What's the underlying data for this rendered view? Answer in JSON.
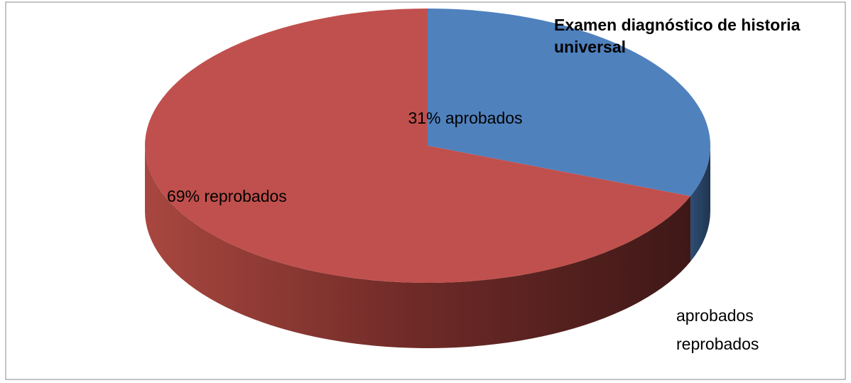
{
  "chart_data": {
    "type": "pie",
    "title": "Examen diagnóstico de historia universal",
    "categories": [
      "aprobados",
      "reprobados"
    ],
    "values": [
      31,
      69
    ],
    "value_labels": [
      "31% aprobados",
      "69% reprobados"
    ],
    "colors": [
      "#4f81bd",
      "#c0504d"
    ],
    "legend": "bottom-right"
  }
}
